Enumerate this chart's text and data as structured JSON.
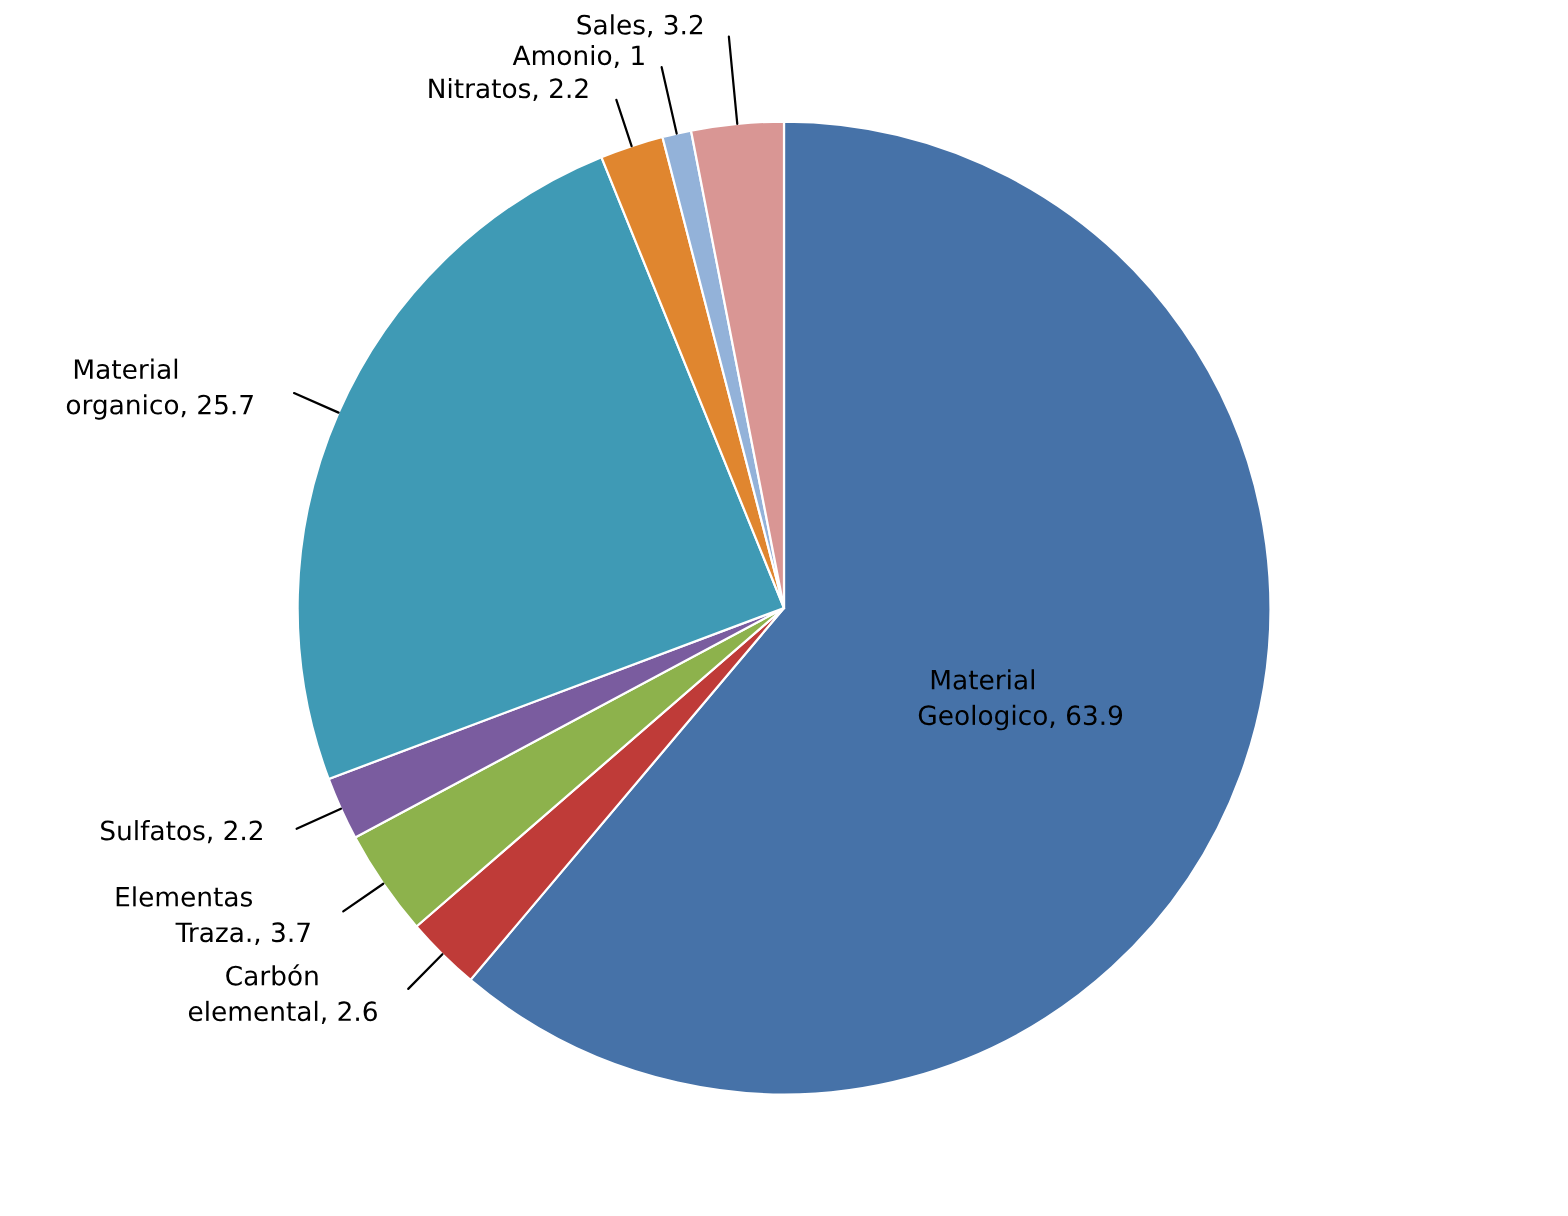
{
  "chart_data": {
    "type": "pie",
    "categories": [
      "Material\nGeologico",
      "Carbón\nelemental",
      "Elementas\nTraza.",
      "Sulfatos",
      "Material\norganico",
      "Nitratos",
      "Amonio",
      "Sales"
    ],
    "values": [
      63.9,
      2.6,
      3.7,
      2.2,
      25.7,
      2.2,
      1,
      3.2
    ],
    "colors": [
      "#4672a8",
      "#bf3b38",
      "#8db24c",
      "#7a5c9f",
      "#3f9ab5",
      "#e0862f",
      "#93b2d9",
      "#d99694"
    ],
    "value_labels": [
      ", 63.9",
      ", 2.6",
      ", 3.7",
      ", 2.2",
      ", 25.7",
      ", 2.2",
      ", 1",
      ", 3.2"
    ],
    "legend": false
  }
}
